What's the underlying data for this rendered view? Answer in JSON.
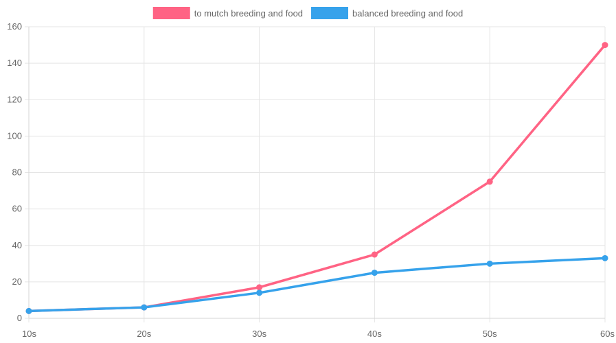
{
  "chart_data": {
    "type": "line",
    "categories": [
      "10s",
      "20s",
      "30s",
      "40s",
      "50s",
      "60s"
    ],
    "series": [
      {
        "name": "to mutch breeding and food",
        "color": "#ff6384",
        "values": [
          4,
          6,
          17,
          35,
          75,
          150
        ]
      },
      {
        "name": "balanced breeding and food",
        "color": "#36a2eb",
        "values": [
          4,
          6,
          14,
          25,
          30,
          33
        ]
      }
    ],
    "ylim": [
      0,
      160
    ],
    "yticks": [
      "0",
      "20",
      "40",
      "60",
      "80",
      "100",
      "120",
      "140",
      "160"
    ],
    "grid": true,
    "legend_position": "top"
  }
}
